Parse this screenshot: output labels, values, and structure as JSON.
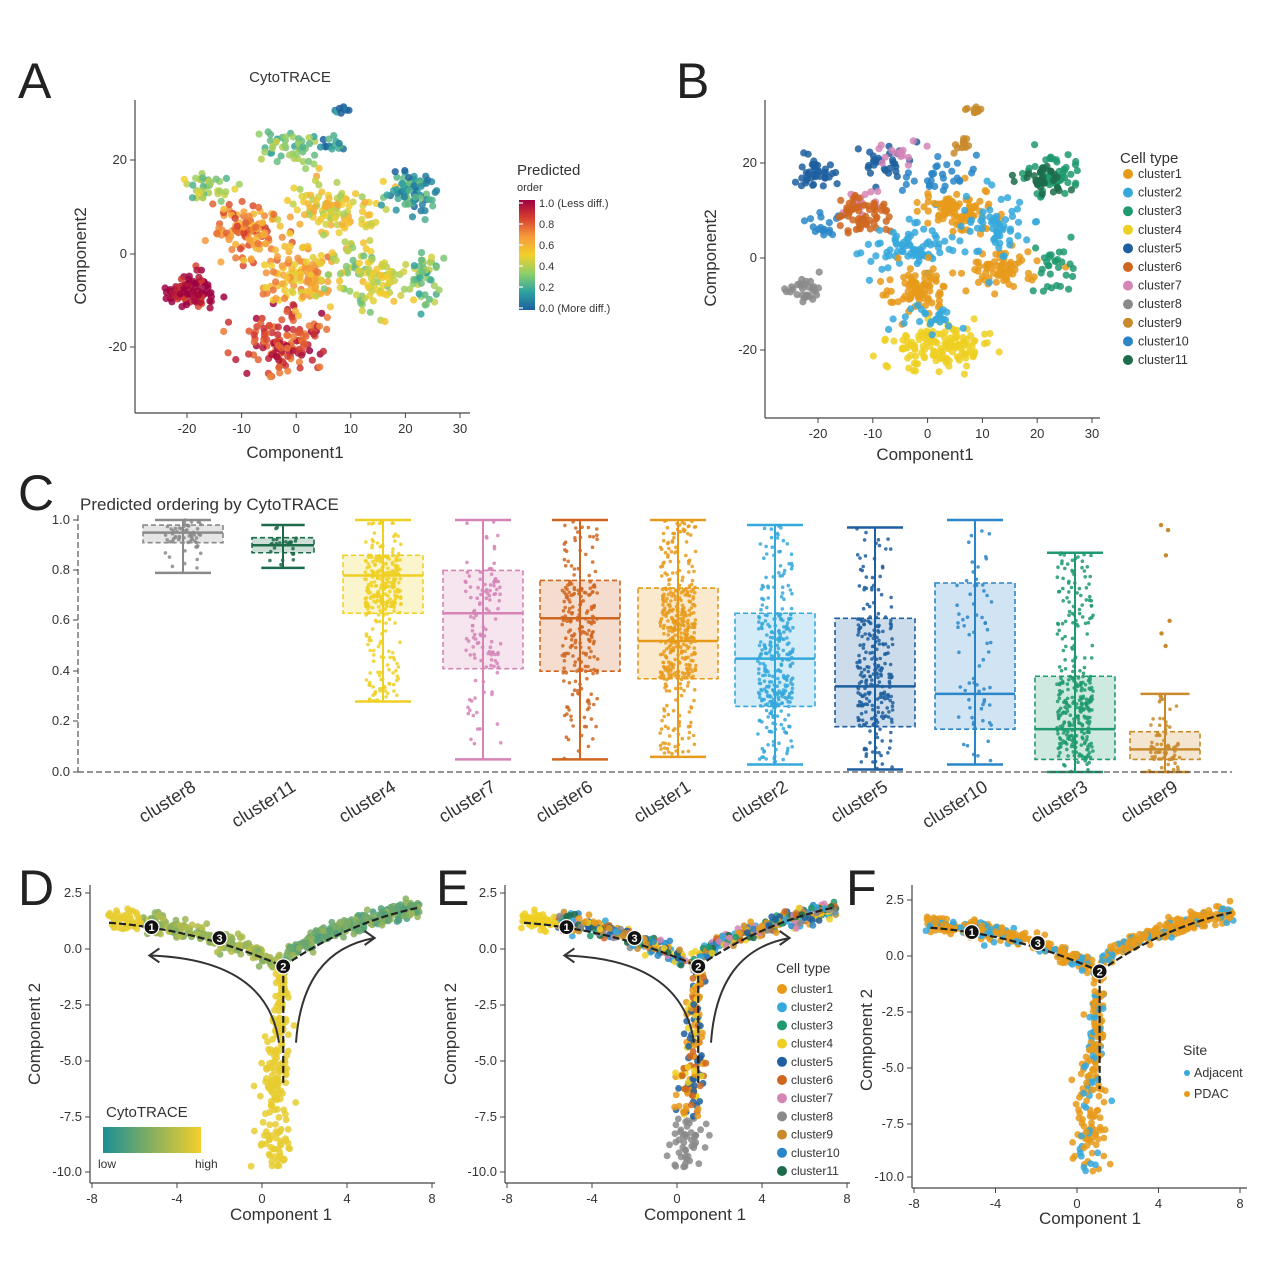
{
  "colors": {
    "clusters": {
      "cluster1": "#e79a1a",
      "cluster2": "#35a8dc",
      "cluster3": "#1f9a6e",
      "cluster4": "#efd022",
      "cluster5": "#1d5f9f",
      "cluster6": "#cf6620",
      "cluster7": "#d584b6",
      "cluster8": "#8a8a8a",
      "cluster9": "#c88a2a",
      "cluster10": "#2a86c8",
      "cluster11": "#1d6b4a"
    },
    "sites": {
      "Adjacent": "#35a8dc",
      "PDAC": "#e79a1a"
    },
    "cytotrace_gradient": [
      "#1d5f9f",
      "#2fa3a0",
      "#8fcf6a",
      "#f2d02b",
      "#f59a3b",
      "#d8402f",
      "#9e0142"
    ],
    "cytotrace_lowhigh": [
      "#1a8f95",
      "#f2d02b"
    ]
  },
  "panels": {
    "A": {
      "letter": "A",
      "title": "CytoTRACE",
      "xlabel": "Component1",
      "ylabel": "Component2",
      "xticks": [
        "-20",
        "-10",
        "0",
        "10",
        "20",
        "30"
      ],
      "yticks": [
        "20",
        "0",
        "-20"
      ],
      "legend_title": "Predicted",
      "legend_subtitle": "order",
      "legend_labels": [
        "1.0 (Less diff.)",
        "0.8",
        "0.6",
        "0.4",
        "0.2",
        "0.0 (More diff.)"
      ]
    },
    "B": {
      "letter": "B",
      "xlabel": "Component1",
      "ylabel": "Component2",
      "xticks": [
        "-20",
        "-10",
        "0",
        "10",
        "20",
        "30"
      ],
      "yticks": [
        "20",
        "0",
        "-20"
      ],
      "legend_title": "Cell type",
      "legend_labels": [
        "cluster1",
        "cluster2",
        "cluster3",
        "cluster4",
        "cluster5",
        "cluster6",
        "cluster7",
        "cluster8",
        "cluster9",
        "cluster10",
        "cluster11"
      ]
    },
    "C": {
      "letter": "C",
      "title": "Predicted ordering by CytoTRACE",
      "yticks": [
        "1.0",
        "0.8",
        "0.6",
        "0.4",
        "0.2",
        "0.0"
      ]
    },
    "D": {
      "letter": "D",
      "xlabel": "Component 1",
      "ylabel": "Component 2",
      "xticks": [
        "-8",
        "-4",
        "0",
        "4",
        "8"
      ],
      "yticks": [
        "2.5",
        "0.0",
        "-2.5",
        "-5.0",
        "-7.5",
        "-10.0"
      ],
      "legend_title": "CytoTRACE",
      "legend_low": "low",
      "legend_high": "high",
      "nodes": [
        "1",
        "3",
        "2"
      ]
    },
    "E": {
      "letter": "E",
      "xlabel": "Component 1",
      "ylabel": "Component 2",
      "xticks": [
        "-8",
        "-4",
        "0",
        "4",
        "8"
      ],
      "yticks": [
        "2.5",
        "0.0",
        "-2.5",
        "-5.0",
        "-7.5",
        "-10.0"
      ],
      "legend_title": "Cell type",
      "legend_labels": [
        "cluster1",
        "cluster2",
        "cluster3",
        "cluster4",
        "cluster5",
        "cluster6",
        "cluster7",
        "cluster8",
        "cluster9",
        "cluster10",
        "cluster11"
      ],
      "nodes": [
        "1",
        "3",
        "2"
      ]
    },
    "F": {
      "letter": "F",
      "xlabel": "Component 1",
      "ylabel": "Component 2",
      "xticks": [
        "-8",
        "-4",
        "0",
        "4",
        "8"
      ],
      "yticks": [
        "2.5",
        "0.0",
        "-2.5",
        "-5.0",
        "-7.5",
        "-10.0"
      ],
      "legend_title": "Site",
      "legend_labels": [
        "Adjacent",
        "PDAC"
      ],
      "nodes": [
        "1",
        "3",
        "2"
      ]
    }
  },
  "chart_data": [
    {
      "panel": "A",
      "type": "scatter",
      "title": "CytoTRACE",
      "xlabel": "Component1",
      "ylabel": "Component2",
      "xlim": [
        -28,
        30
      ],
      "ylim": [
        -34,
        31
      ],
      "color_by": "Predicted order (0.0 More diff. to 1.0 Less diff.)",
      "groups": [
        {
          "x": -19,
          "y": -9,
          "spread": [
            3.5,
            3
          ],
          "n": 90,
          "value": 0.96
        },
        {
          "x": -16,
          "y": 13,
          "spread": [
            4,
            3.5
          ],
          "n": 35,
          "value": 0.35
        },
        {
          "x": -9,
          "y": 4,
          "spread": [
            5,
            5
          ],
          "n": 110,
          "value": 0.7
        },
        {
          "x": -2,
          "y": -20,
          "spread": [
            6,
            5
          ],
          "n": 130,
          "value": 0.85
        },
        {
          "x": 0,
          "y": -6,
          "spread": [
            6,
            5
          ],
          "n": 120,
          "value": 0.6
        },
        {
          "x": 6,
          "y": 8,
          "spread": [
            6,
            5
          ],
          "n": 110,
          "value": 0.5
        },
        {
          "x": 12,
          "y": -6,
          "spread": [
            6,
            6
          ],
          "n": 100,
          "value": 0.4
        },
        {
          "x": 20,
          "y": 12,
          "spread": [
            4,
            4
          ],
          "n": 80,
          "value": 0.15
        },
        {
          "x": 22,
          "y": -6,
          "spread": [
            3,
            5
          ],
          "n": 50,
          "value": 0.3
        },
        {
          "x": -2,
          "y": 21,
          "spread": [
            5,
            3
          ],
          "n": 50,
          "value": 0.3
        },
        {
          "x": 8,
          "y": 29,
          "spread": [
            1.2,
            0.6
          ],
          "n": 10,
          "value": 0.05
        },
        {
          "x": 6,
          "y": 22,
          "spread": [
            2,
            1.5
          ],
          "n": 14,
          "value": 0.1
        }
      ]
    },
    {
      "panel": "B",
      "type": "scatter",
      "xlabel": "Component1",
      "ylabel": "Component2",
      "xlim": [
        -28,
        30
      ],
      "ylim": [
        -34,
        31
      ],
      "color_by": "Cell type",
      "groups": [
        {
          "x": -20,
          "y": 16,
          "spread": [
            3,
            3
          ],
          "n": 40,
          "cluster": "cluster5"
        },
        {
          "x": -18,
          "y": 5,
          "spread": [
            3,
            3
          ],
          "n": 20,
          "cluster": "cluster10"
        },
        {
          "x": -8,
          "y": 18,
          "spread": [
            4,
            3
          ],
          "n": 30,
          "cluster": "cluster5"
        },
        {
          "x": -12,
          "y": 10,
          "spread": [
            3,
            3
          ],
          "n": 15,
          "cluster": "cluster7"
        },
        {
          "x": -22,
          "y": -8,
          "spread": [
            2.5,
            2.5
          ],
          "n": 30,
          "cluster": "cluster8"
        },
        {
          "x": -11,
          "y": 7,
          "spread": [
            5,
            3
          ],
          "n": 60,
          "cluster": "cluster6"
        },
        {
          "x": -3,
          "y": 0,
          "spread": [
            6,
            4
          ],
          "n": 80,
          "cluster": "cluster2"
        },
        {
          "x": 5,
          "y": 8,
          "spread": [
            5,
            3
          ],
          "n": 90,
          "cluster": "cluster1"
        },
        {
          "x": -2,
          "y": -8,
          "spread": [
            5,
            4
          ],
          "n": 80,
          "cluster": "cluster1"
        },
        {
          "x": 13,
          "y": -4,
          "spread": [
            5,
            4
          ],
          "n": 70,
          "cluster": "cluster1"
        },
        {
          "x": 2,
          "y": -20,
          "spread": [
            7,
            4
          ],
          "n": 140,
          "cluster": "cluster4"
        },
        {
          "x": 12,
          "y": 4,
          "spread": [
            5,
            6
          ],
          "n": 60,
          "cluster": "cluster2"
        },
        {
          "x": 22,
          "y": 16,
          "spread": [
            4,
            4
          ],
          "n": 60,
          "cluster": "cluster3"
        },
        {
          "x": 22,
          "y": -4,
          "spread": [
            3,
            4
          ],
          "n": 30,
          "cluster": "cluster3"
        },
        {
          "x": 20,
          "y": 15,
          "spread": [
            4,
            3
          ],
          "n": 30,
          "cluster": "cluster11"
        },
        {
          "x": 8,
          "y": 29,
          "spread": [
            1.2,
            0.6
          ],
          "n": 10,
          "cluster": "cluster9"
        },
        {
          "x": 6,
          "y": 22,
          "spread": [
            2,
            1.5
          ],
          "n": 12,
          "cluster": "cluster9"
        },
        {
          "x": -5,
          "y": 20,
          "spread": [
            4,
            2
          ],
          "n": 15,
          "cluster": "cluster7"
        },
        {
          "x": 3,
          "y": 15,
          "spread": [
            6,
            3
          ],
          "n": 30,
          "cluster": "cluster10"
        },
        {
          "x": -1,
          "y": -15,
          "spread": [
            5,
            3
          ],
          "n": 25,
          "cluster": "cluster2"
        }
      ]
    },
    {
      "panel": "C",
      "type": "box",
      "title": "Predicted ordering by CytoTRACE",
      "ylim": [
        0,
        1
      ],
      "categories": [
        "cluster8",
        "cluster11",
        "cluster4",
        "cluster7",
        "cluster6",
        "cluster1",
        "cluster2",
        "cluster5",
        "cluster10",
        "cluster3",
        "cluster9"
      ],
      "boxes": [
        {
          "name": "cluster8",
          "q1": 0.91,
          "median": 0.95,
          "q3": 0.98,
          "whislo": 0.79,
          "whishi": 1.0,
          "n": 60
        },
        {
          "name": "cluster11",
          "q1": 0.87,
          "median": 0.9,
          "q3": 0.93,
          "whislo": 0.81,
          "whishi": 0.98,
          "n": 25
        },
        {
          "name": "cluster4",
          "q1": 0.63,
          "median": 0.78,
          "q3": 0.86,
          "whislo": 0.28,
          "whishi": 1.0,
          "n": 300
        },
        {
          "name": "cluster7",
          "q1": 0.41,
          "median": 0.63,
          "q3": 0.8,
          "whislo": 0.05,
          "whishi": 1.0,
          "n": 120
        },
        {
          "name": "cluster6",
          "q1": 0.4,
          "median": 0.61,
          "q3": 0.76,
          "whislo": 0.05,
          "whishi": 1.0,
          "n": 220
        },
        {
          "name": "cluster1",
          "q1": 0.37,
          "median": 0.52,
          "q3": 0.73,
          "whislo": 0.06,
          "whishi": 1.0,
          "n": 400
        },
        {
          "name": "cluster2",
          "q1": 0.26,
          "median": 0.45,
          "q3": 0.63,
          "whislo": 0.03,
          "whishi": 0.98,
          "n": 320
        },
        {
          "name": "cluster5",
          "q1": 0.18,
          "median": 0.34,
          "q3": 0.61,
          "whislo": 0.01,
          "whishi": 0.97,
          "n": 260
        },
        {
          "name": "cluster10",
          "q1": 0.17,
          "median": 0.31,
          "q3": 0.75,
          "whislo": 0.03,
          "whishi": 1.0,
          "n": 70
        },
        {
          "name": "cluster3",
          "q1": 0.05,
          "median": 0.17,
          "q3": 0.38,
          "whislo": 0.0,
          "whishi": 0.87,
          "n": 320
        },
        {
          "name": "cluster9",
          "q1": 0.05,
          "median": 0.09,
          "q3": 0.16,
          "whislo": 0.0,
          "whishi": 0.31,
          "n": 70,
          "outliers": [
            0.98,
            0.96,
            0.86,
            0.6,
            0.55,
            0.5
          ]
        }
      ]
    },
    {
      "panel": "D",
      "type": "scatter",
      "title": "",
      "xlabel": "Component 1",
      "ylabel": "Component 2",
      "xlim": [
        -8,
        8
      ],
      "ylim": [
        -10.5,
        2.7
      ],
      "color_by": "CytoTRACE (low to high)",
      "branch_points": [
        {
          "label": "1",
          "x": -5.2,
          "y": 1.0
        },
        {
          "label": "3",
          "x": -2.0,
          "y": 0.5
        },
        {
          "label": "2",
          "x": 1.0,
          "y": -0.8
        }
      ]
    },
    {
      "panel": "E",
      "type": "scatter",
      "xlabel": "Component 1",
      "ylabel": "Component 2",
      "xlim": [
        -8,
        8
      ],
      "ylim": [
        -10.5,
        2.7
      ],
      "color_by": "Cell type",
      "branch_points": [
        {
          "label": "1",
          "x": -5.2,
          "y": 1.0
        },
        {
          "label": "3",
          "x": -2.0,
          "y": 0.5
        },
        {
          "label": "2",
          "x": 1.0,
          "y": -0.8
        }
      ]
    },
    {
      "panel": "F",
      "type": "scatter",
      "xlabel": "Component 1",
      "ylabel": "Component 2",
      "xlim": [
        -8,
        8
      ],
      "ylim": [
        -10.5,
        2.7
      ],
      "color_by": "Site",
      "branch_points": [
        {
          "label": "1",
          "x": -5.2,
          "y": 1.0
        },
        {
          "label": "3",
          "x": -2.0,
          "y": 0.5
        },
        {
          "label": "2",
          "x": 1.0,
          "y": -0.8
        }
      ]
    }
  ]
}
